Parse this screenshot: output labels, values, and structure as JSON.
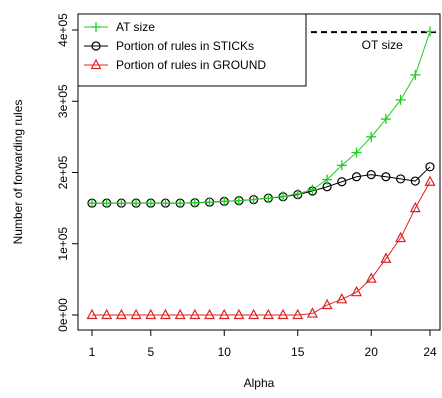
{
  "chart_data": {
    "type": "line",
    "xlabel": "Alpha",
    "ylabel": "Number of forwarding rules",
    "xlim": [
      1,
      24
    ],
    "ylim": [
      0,
      400000
    ],
    "x_ticks": [
      1,
      5,
      10,
      15,
      20,
      24
    ],
    "x_tick_labels": [
      "1",
      "5",
      "10",
      "15",
      "20",
      "24"
    ],
    "y_ticks": [
      0,
      100000,
      200000,
      300000,
      400000
    ],
    "y_tick_labels": [
      "0e+00",
      "1e+05",
      "2e+05",
      "3e+05",
      "4e+05"
    ],
    "grid": false,
    "legend_position": "top-left",
    "x": [
      1,
      2,
      3,
      4,
      5,
      6,
      7,
      8,
      9,
      10,
      11,
      12,
      13,
      14,
      15,
      16,
      17,
      18,
      19,
      20,
      21,
      22,
      23,
      24
    ],
    "series": [
      {
        "name": "AT size",
        "marker": "plus",
        "color": "#22cc22",
        "values": [
          157000,
          157000,
          157000,
          157000,
          157000,
          157000,
          157000,
          157500,
          158500,
          159500,
          160500,
          162000,
          164000,
          166500,
          170000,
          176000,
          190000,
          210000,
          228000,
          250000,
          275000,
          302000,
          337000,
          398000
        ]
      },
      {
        "name": "Portion of rules in STICKs",
        "marker": "circle",
        "color": "#000000",
        "values": [
          157000,
          157000,
          157000,
          157000,
          157000,
          157000,
          157000,
          157500,
          158500,
          159500,
          160500,
          162000,
          164000,
          166000,
          169000,
          174000,
          180000,
          187000,
          194000,
          197000,
          194000,
          191000,
          188000,
          208000
        ]
      },
      {
        "name": "Portion of rules in GROUND",
        "marker": "triangle",
        "color": "#dd2222",
        "values": [
          0,
          0,
          0,
          0,
          0,
          0,
          0,
          0,
          0,
          0,
          0,
          0,
          0,
          0,
          0,
          2000,
          14000,
          22000,
          32000,
          51000,
          79000,
          108000,
          150000,
          187000
        ]
      }
    ],
    "reference_lines": [
      {
        "label": "OT size",
        "y": 397000,
        "x_start": 15.9,
        "x_end": 24.4,
        "style": "dashed",
        "color": "#000000"
      }
    ]
  }
}
